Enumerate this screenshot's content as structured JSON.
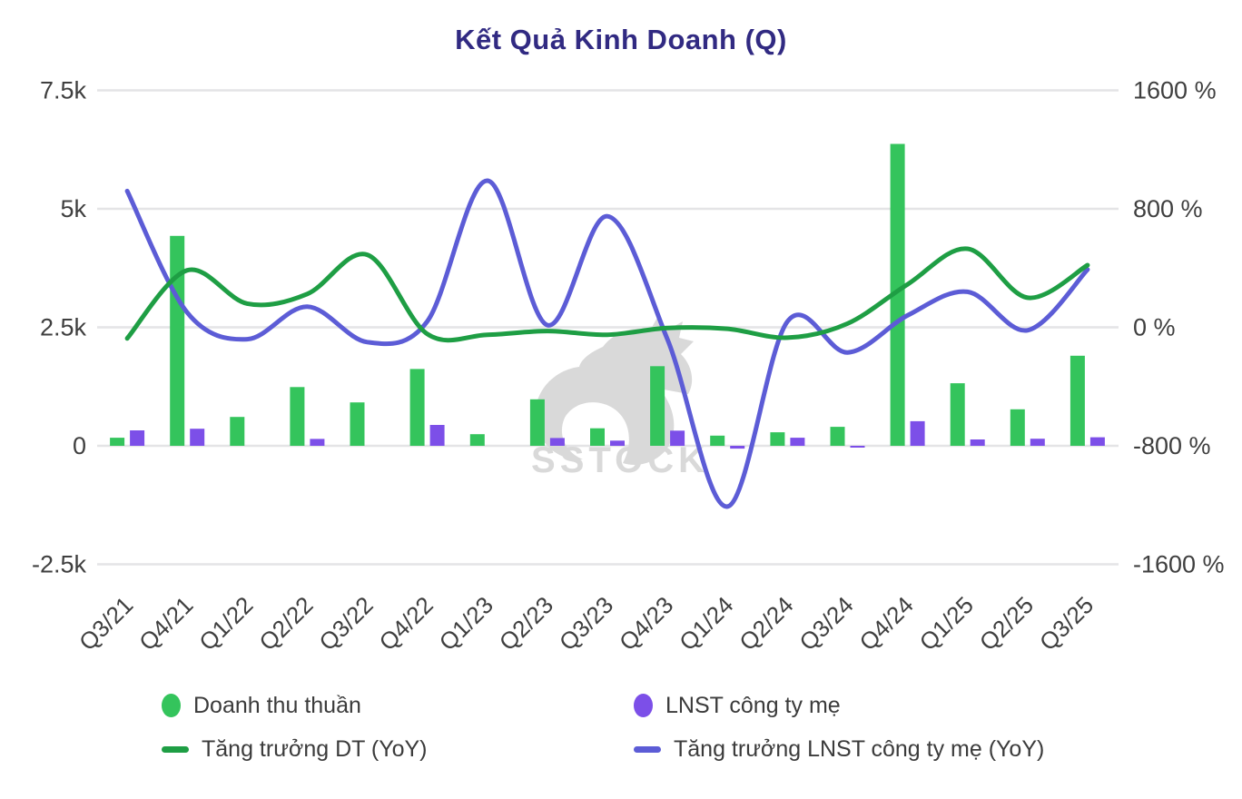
{
  "title": "Kết Quả Kinh Doanh (Q)",
  "watermark_text": "SSTOCK",
  "colors": {
    "title": "#312a82",
    "revenue_bar": "#34c45c",
    "profit_bar": "#7c4fe8",
    "revenue_line": "#1e9e44",
    "profit_line": "#5c5cd6",
    "grid": "#e4e4e6",
    "axis_text": "#3f3f3f",
    "watermark": "#d9d9d9",
    "background": "#ffffff"
  },
  "legend": {
    "revenue_bar": "Doanh thu thuần",
    "profit_bar": "LNST công ty mẹ",
    "revenue_line": "Tăng trưởng DT (YoY)",
    "profit_line": "Tăng trưởng LNST công ty mẹ (YoY)"
  },
  "chart_data": {
    "type": "bar",
    "subtype": "combo bar+line, dual axis",
    "title": "Kết Quả Kinh Doanh (Q)",
    "categories": [
      "Q3/21",
      "Q4/21",
      "Q1/22",
      "Q2/22",
      "Q3/22",
      "Q4/22",
      "Q1/23",
      "Q2/23",
      "Q3/23",
      "Q4/23",
      "Q1/24",
      "Q2/24",
      "Q3/24",
      "Q4/24",
      "Q1/25",
      "Q2/25",
      "Q3/25"
    ],
    "series": [
      {
        "name": "Doanh thu thuần",
        "type": "bar",
        "axis": "left",
        "values": [
          170,
          4430,
          610,
          1240,
          915,
          1620,
          245,
          980,
          370,
          1680,
          215,
          285,
          400,
          6370,
          1320,
          770,
          1900
        ]
      },
      {
        "name": "LNST công ty mẹ",
        "type": "bar",
        "axis": "left",
        "values": [
          325,
          360,
          0,
          145,
          0,
          440,
          0,
          165,
          110,
          320,
          -60,
          170,
          -25,
          520,
          135,
          150,
          180
        ]
      },
      {
        "name": "Tăng trưởng DT (YoY)",
        "type": "line",
        "axis": "right",
        "values": [
          -75,
          385,
          160,
          225,
          490,
          -45,
          -50,
          -25,
          -50,
          -5,
          -10,
          -70,
          25,
          290,
          530,
          200,
          420
        ]
      },
      {
        "name": "Tăng trưởng LNST công ty mẹ (YoY)",
        "type": "line",
        "axis": "right",
        "values": [
          920,
          100,
          -80,
          140,
          -100,
          40,
          990,
          15,
          750,
          -80,
          -1210,
          40,
          -170,
          80,
          240,
          -20,
          390
        ]
      }
    ],
    "left_axis": {
      "range": [
        -2500,
        7500
      ],
      "ticks": [
        7500,
        5000,
        2500,
        0,
        -2500
      ],
      "labels": [
        "7.5k",
        "5k",
        "2.5k",
        "0",
        "-2.5k"
      ]
    },
    "right_axis": {
      "range": [
        -1600,
        1600
      ],
      "ticks": [
        1600,
        800,
        0,
        -800,
        -1600
      ],
      "labels": [
        "1600 %",
        "800 %",
        "0 %",
        "-800 %",
        "-1600 %"
      ]
    },
    "grid": true,
    "legend_position": "bottom",
    "xlabel": "",
    "ylabel": ""
  }
}
